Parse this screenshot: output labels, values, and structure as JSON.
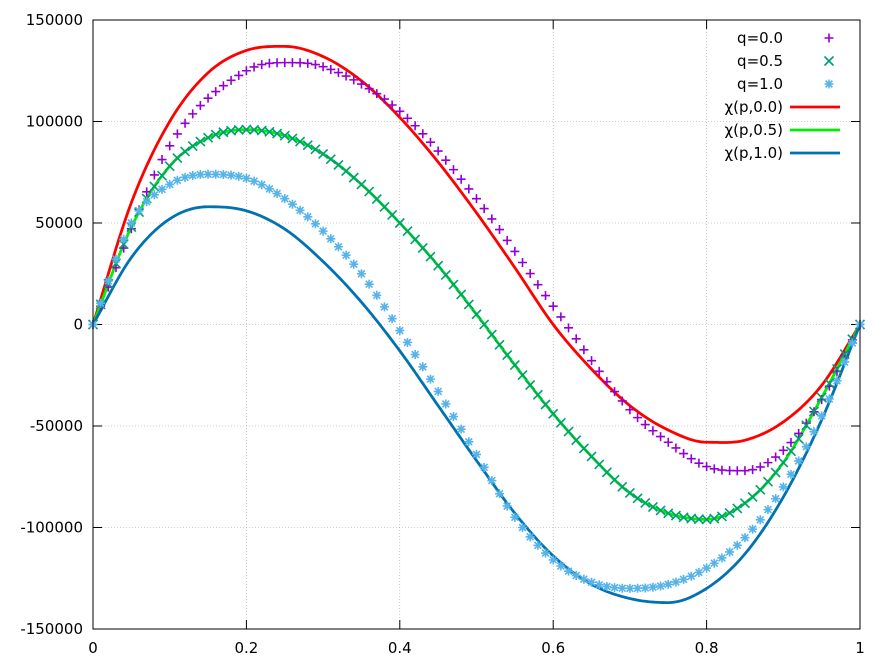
{
  "chart_data": {
    "type": "line",
    "title": "",
    "xlabel": "",
    "ylabel": "",
    "xlim": [
      0,
      1
    ],
    "ylim": [
      -150000,
      150000
    ],
    "xticks": [
      0,
      0.2,
      0.4,
      0.6,
      0.8,
      1
    ],
    "xtick_labels": [
      "0",
      "0.2",
      "0.4",
      "0.6",
      "0.8",
      "1"
    ],
    "yticks": [
      -150000,
      -100000,
      -50000,
      0,
      50000,
      100000,
      150000
    ],
    "ytick_labels": [
      "-150000",
      "-100000",
      "-50000",
      "0",
      "50000",
      "100000",
      "150000"
    ],
    "grid": true,
    "legend_position": "top-right",
    "series": [
      {
        "name": "q=0.0",
        "kind": "points",
        "marker": "plus",
        "color": "#9400d3",
        "x": [
          0,
          0.1,
          0.2,
          0.25,
          0.3,
          0.4,
          0.5,
          0.6,
          0.7,
          0.75,
          0.8,
          0.85,
          0.9,
          0.95,
          1
        ],
        "y": [
          0,
          88000,
          125000,
          129000,
          127000,
          105000,
          62000,
          9000,
          -42000,
          -58000,
          -70000,
          -72000,
          -62000,
          -37000,
          0
        ]
      },
      {
        "name": "q=0.5",
        "kind": "points",
        "marker": "cross",
        "color": "#009e73",
        "x": [
          0,
          0.05,
          0.1,
          0.15,
          0.2,
          0.25,
          0.3,
          0.35,
          0.4,
          0.45,
          0.5,
          0.55,
          0.6,
          0.65,
          0.7,
          0.75,
          0.8,
          0.85,
          0.9,
          0.95,
          1
        ],
        "y": [
          0,
          48000,
          78000,
          92000,
          96000,
          93000,
          84000,
          69000,
          50000,
          29000,
          5000,
          -20000,
          -44000,
          -65000,
          -83000,
          -93000,
          -96000,
          -88000,
          -68000,
          -36000,
          0
        ]
      },
      {
        "name": "q=1.0",
        "kind": "points",
        "marker": "star",
        "color": "#56b4e9",
        "x": [
          0,
          0.05,
          0.1,
          0.15,
          0.2,
          0.25,
          0.3,
          0.35,
          0.4,
          0.45,
          0.5,
          0.55,
          0.6,
          0.65,
          0.7,
          0.75,
          0.8,
          0.85,
          0.9,
          0.95,
          1
        ],
        "y": [
          0,
          50000,
          69000,
          74000,
          72000,
          62000,
          46000,
          25000,
          -3000,
          -33000,
          -64000,
          -95000,
          -116000,
          -127000,
          -130000,
          -128000,
          -120000,
          -105000,
          -80000,
          -45000,
          0
        ]
      },
      {
        "name": "χ(p,0.0)",
        "kind": "line",
        "color": "#ff0000",
        "x": [
          0,
          0.05,
          0.1,
          0.15,
          0.2,
          0.25,
          0.3,
          0.35,
          0.4,
          0.45,
          0.5,
          0.55,
          0.6,
          0.65,
          0.7,
          0.75,
          0.8,
          0.85,
          0.9,
          0.95,
          1
        ],
        "y": [
          0,
          60000,
          100000,
          124000,
          135000,
          137000,
          132000,
          120000,
          102000,
          80000,
          55000,
          28000,
          0,
          -22000,
          -40000,
          -52000,
          -58000,
          -57000,
          -48000,
          -30000,
          0
        ]
      },
      {
        "name": "χ(p,0.5)",
        "kind": "line",
        "color": "#00ee00",
        "x": [
          0,
          0.05,
          0.1,
          0.15,
          0.2,
          0.25,
          0.3,
          0.35,
          0.4,
          0.45,
          0.5,
          0.55,
          0.6,
          0.65,
          0.7,
          0.75,
          0.8,
          0.85,
          0.9,
          0.95,
          1
        ],
        "y": [
          0,
          48000,
          78000,
          92000,
          96000,
          93000,
          84000,
          69000,
          50000,
          29000,
          5000,
          -20000,
          -44000,
          -65000,
          -83000,
          -93000,
          -96000,
          -88000,
          -68000,
          -36000,
          0
        ]
      },
      {
        "name": "χ(p,1.0)",
        "kind": "line",
        "color": "#0072b2",
        "x": [
          0,
          0.05,
          0.1,
          0.15,
          0.2,
          0.25,
          0.3,
          0.35,
          0.4,
          0.45,
          0.5,
          0.55,
          0.6,
          0.65,
          0.7,
          0.75,
          0.8,
          0.85,
          0.9,
          0.95,
          1
        ],
        "y": [
          0,
          33000,
          52000,
          58000,
          56000,
          47000,
          31000,
          11000,
          -13000,
          -40000,
          -67000,
          -93000,
          -114000,
          -128000,
          -135000,
          -137000,
          -130000,
          -113000,
          -85000,
          -47000,
          0
        ]
      }
    ]
  }
}
